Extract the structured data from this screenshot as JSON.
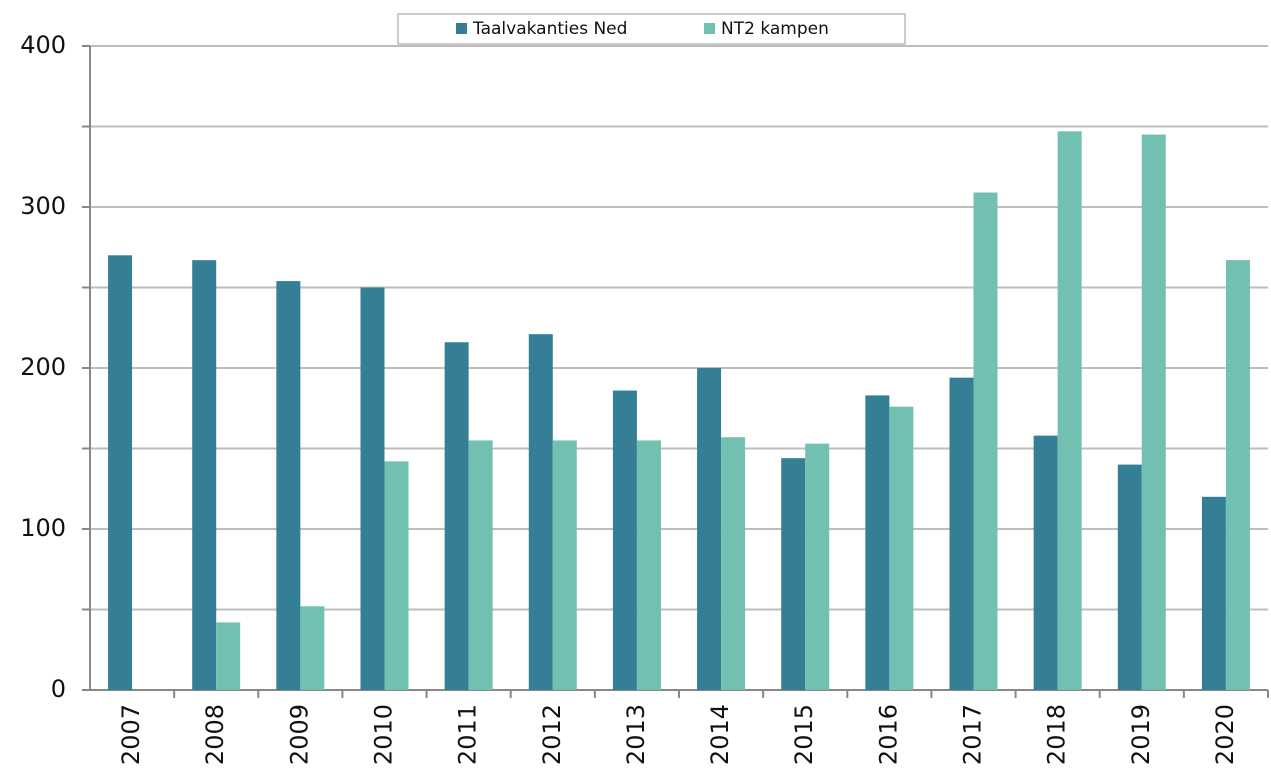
{
  "chart_data": {
    "type": "bar",
    "categories": [
      "2007",
      "2008",
      "2009",
      "2010",
      "2011",
      "2012",
      "2013",
      "2014",
      "2015",
      "2016",
      "2017",
      "2018",
      "2019",
      "2020"
    ],
    "series": [
      {
        "name": "Taalvakanties Ned",
        "color": "#357f96",
        "values": [
          270,
          267,
          254,
          250,
          216,
          221,
          186,
          200,
          144,
          183,
          194,
          158,
          140,
          120
        ]
      },
      {
        "name": "NT2 kampen",
        "color": "#72c0b2",
        "values": [
          null,
          42,
          52,
          142,
          155,
          155,
          155,
          157,
          153,
          176,
          309,
          347,
          345,
          267
        ]
      }
    ],
    "ylim": [
      0,
      400
    ],
    "yticks": [
      0,
      100,
      200,
      300,
      400
    ],
    "minor_yticks": [
      50,
      150,
      250,
      350
    ],
    "grid": true,
    "legend": "top"
  }
}
